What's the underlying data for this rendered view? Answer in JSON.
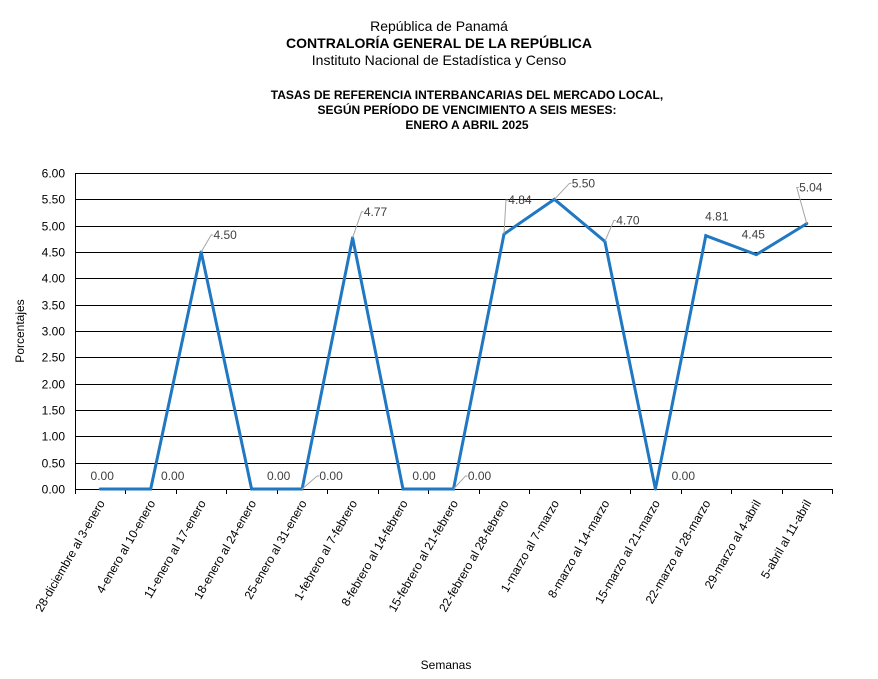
{
  "header": {
    "line1": "República de Panamá",
    "line2": "CONTRALORÍA GENERAL DE LA REPÚBLICA",
    "line3": "Instituto Nacional de Estadística y Censo"
  },
  "chart_data": {
    "type": "line",
    "title": [
      "TASAS DE REFERENCIA INTERBANCARIAS DEL MERCADO LOCAL,",
      "SEGÚN PERÍODO DE VENCIMIENTO A SEIS MESES:",
      "ENERO A ABRIL 2025"
    ],
    "xlabel": "Semanas",
    "ylabel": "Porcentajes",
    "ylim": [
      0,
      6
    ],
    "yticks": [
      "0.00",
      "0.50",
      "1.00",
      "1.50",
      "2.00",
      "2.50",
      "3.00",
      "3.50",
      "4.00",
      "4.50",
      "5.00",
      "5.50",
      "6.00"
    ],
    "grid": true,
    "categories": [
      "28-diciembre al 3-enero",
      "4-enero al 10-enero",
      "11-enero al 17-enero",
      "18-enero al 24-enero",
      "25-enero al 31-enero",
      "1-febrero al 7-febrero",
      "8-febrero al 14-febrero",
      "15-febrero al 21-febrero",
      "22-febrero al 28-febrero",
      "1-marzo al 7-marzo",
      "8-marzo al 14-marzo",
      "15-marzo al 21-marzo",
      "22-marzo al 28-marzo",
      "29-marzo al 4-abril",
      "5-abril al 11-abril"
    ],
    "values": [
      0.0,
      0.0,
      4.5,
      0.0,
      0.0,
      4.77,
      0.0,
      0.0,
      4.84,
      5.5,
      4.7,
      0.0,
      4.81,
      4.45,
      5.04
    ],
    "labels": [
      "0.00",
      "0.00",
      "4.50",
      "0.00",
      "0.00",
      "4.77",
      "0.00",
      "0.00",
      "4.84",
      "5.50",
      "4.70",
      "0.00",
      "4.81",
      "4.45",
      "5.04"
    ],
    "line_color": "#1f78c1"
  }
}
